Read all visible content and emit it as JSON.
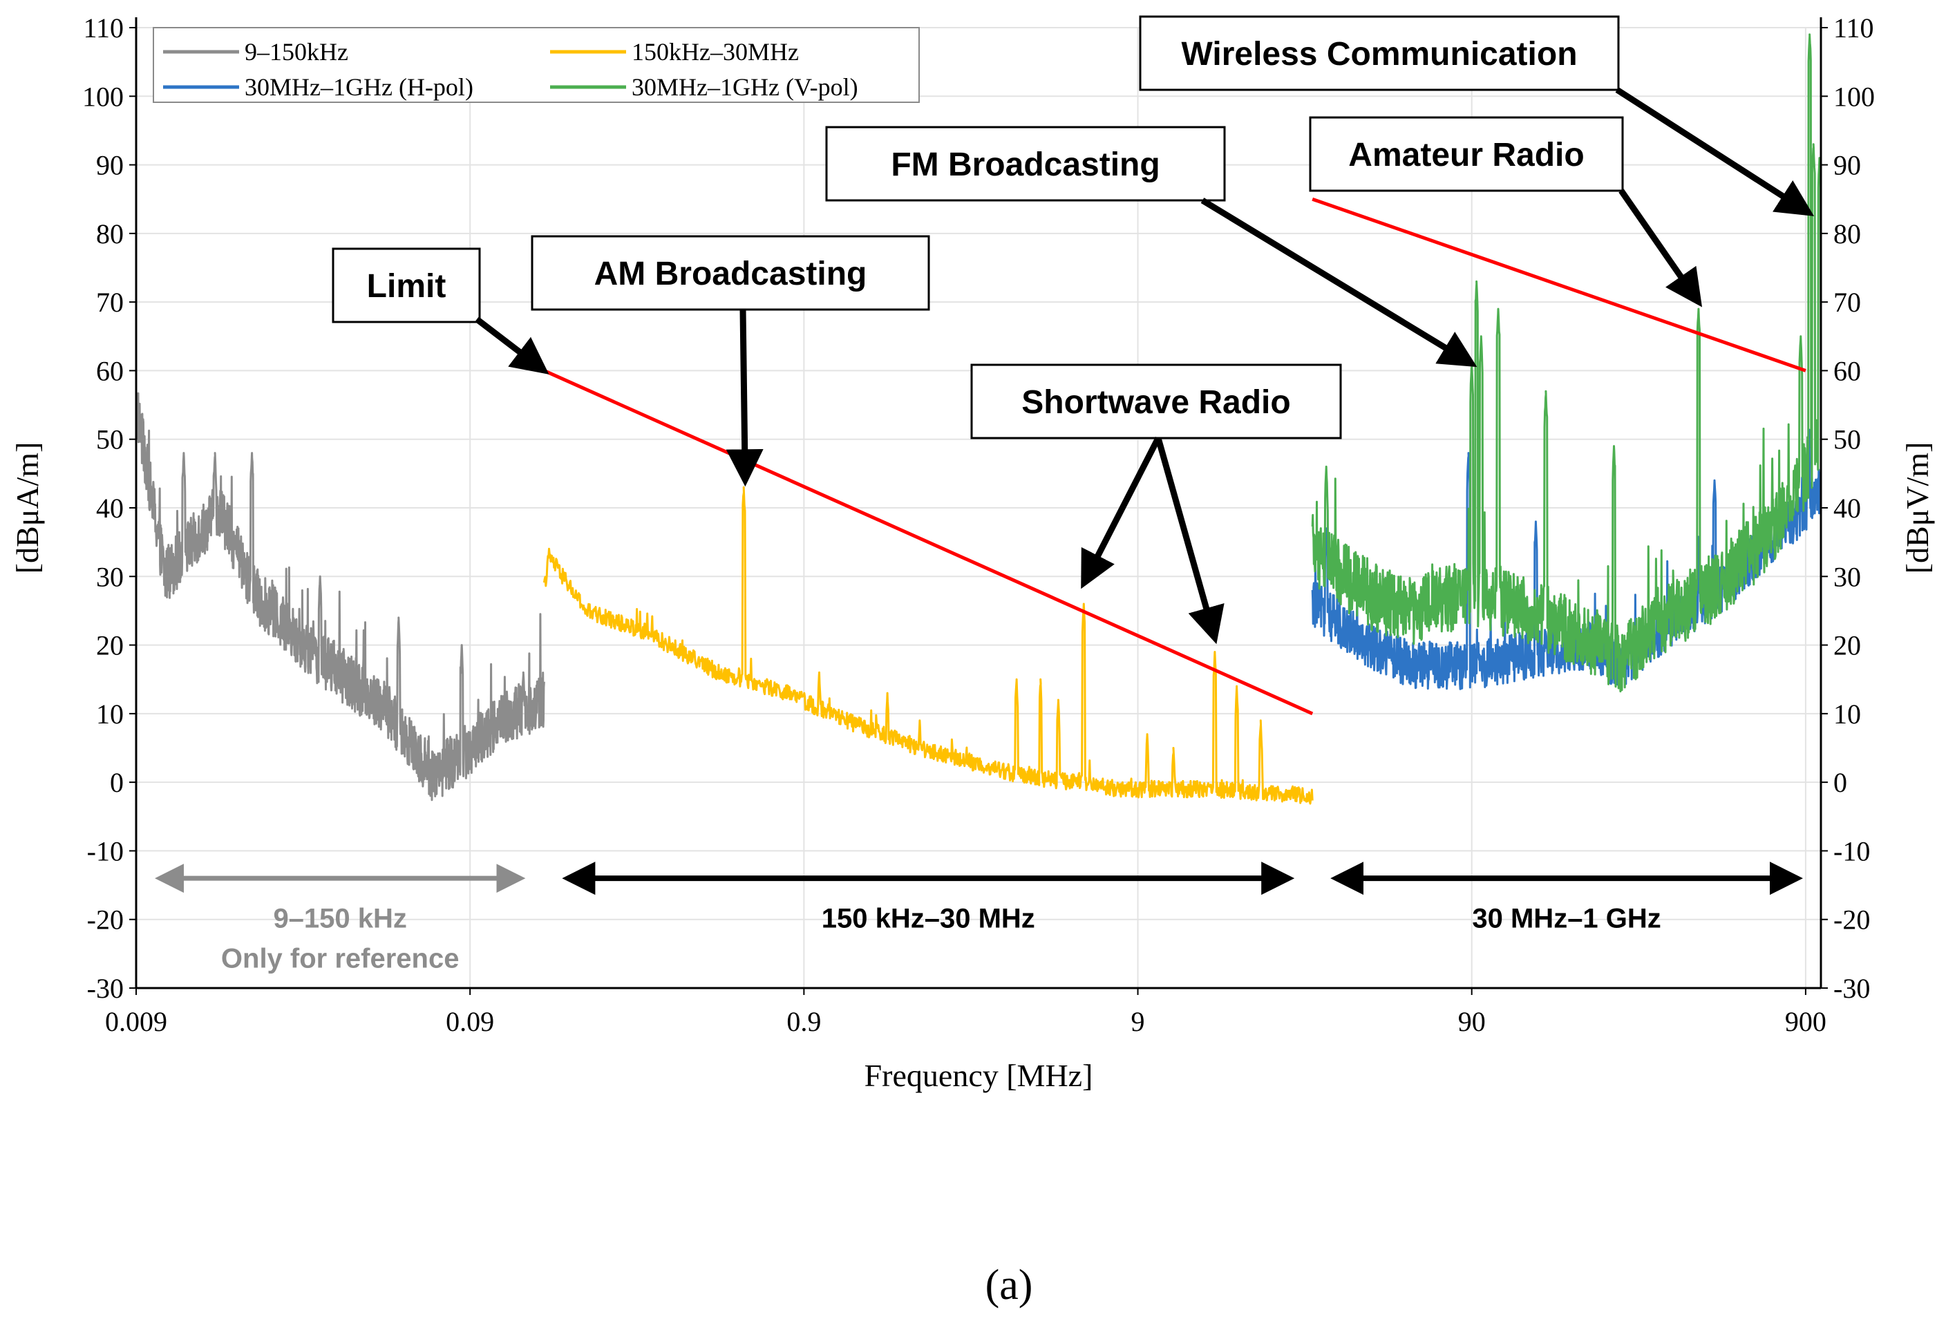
{
  "chart_data": {
    "type": "line",
    "x_scale": "log",
    "xlabel": "Frequency [MHz]",
    "ylabel_left": "[dBμA/m]",
    "ylabel_right": "[dBμV/m]",
    "xlim": [
      0.009,
      1000
    ],
    "ylim": [
      -30,
      110
    ],
    "x_tick_values": [
      0.009,
      0.09,
      0.9,
      9,
      90,
      900
    ],
    "x_tick_labels": [
      "0.009",
      "0.09",
      "0.9",
      "9",
      "90",
      "900"
    ],
    "y_ticks": [
      "-30",
      "-20",
      "-10",
      "0",
      "10",
      "20",
      "30",
      "40",
      "50",
      "60",
      "70",
      "80",
      "90",
      "100",
      "110"
    ],
    "legend": [
      {
        "name": "9–150kHz",
        "color": "#8c8c8c"
      },
      {
        "name": "150kHz–30MHz",
        "color": "#ffc000"
      },
      {
        "name": "30MHz–1GHz (H-pol)",
        "color": "#2e75c6"
      },
      {
        "name": "30MHz–1GHz (V-pol)",
        "color": "#4caf50"
      }
    ],
    "series": [
      {
        "name": "9–150kHz",
        "color": "#8c8c8c",
        "x_range": [
          0.009,
          0.15
        ],
        "baseline": [
          [
            0.009,
            55
          ],
          [
            0.011,
            30
          ],
          [
            0.016,
            40
          ],
          [
            0.02,
            28
          ],
          [
            0.03,
            19
          ],
          [
            0.05,
            11
          ],
          [
            0.07,
            1
          ],
          [
            0.09,
            5
          ],
          [
            0.11,
            9
          ],
          [
            0.15,
            12
          ]
        ],
        "peaks": [
          [
            0.009,
            57
          ],
          [
            0.0125,
            48
          ],
          [
            0.0155,
            48
          ],
          [
            0.02,
            48
          ],
          [
            0.032,
            30
          ],
          [
            0.055,
            24
          ],
          [
            0.085,
            20
          ],
          [
            0.13,
            16
          ]
        ],
        "noise": 4
      },
      {
        "name": "150kHz–30MHz",
        "color": "#ffc000",
        "x_range": [
          0.15,
          30
        ],
        "baseline": [
          [
            0.15,
            28
          ],
          [
            0.155,
            33
          ],
          [
            0.2,
            25
          ],
          [
            0.3,
            22
          ],
          [
            0.5,
            16
          ],
          [
            0.8,
            13
          ],
          [
            1.2,
            9
          ],
          [
            2,
            5
          ],
          [
            4,
            1
          ],
          [
            8,
            -1
          ],
          [
            15,
            -1
          ],
          [
            30,
            -2
          ]
        ],
        "peaks": [
          [
            0.594,
            43
          ],
          [
            1.0,
            16
          ],
          [
            1.6,
            13
          ],
          [
            3.9,
            15
          ],
          [
            4.6,
            15
          ],
          [
            5.2,
            12
          ],
          [
            6.2,
            26
          ],
          [
            9.6,
            7
          ],
          [
            11.5,
            5
          ],
          [
            15.3,
            19
          ],
          [
            17.8,
            14
          ],
          [
            21,
            9
          ],
          [
            2.0,
            9
          ]
        ],
        "noise": 1.2
      },
      {
        "name": "30MHz–1GHz (H-pol)",
        "color": "#2e75c6",
        "x_range": [
          30,
          1000
        ],
        "baseline": [
          [
            30,
            26
          ],
          [
            45,
            20
          ],
          [
            60,
            17
          ],
          [
            90,
            17
          ],
          [
            150,
            19
          ],
          [
            200,
            20
          ],
          [
            250,
            17
          ],
          [
            350,
            23
          ],
          [
            500,
            28
          ],
          [
            700,
            35
          ],
          [
            900,
            40
          ],
          [
            1000,
            43
          ]
        ],
        "peaks": [
          [
            33,
            37
          ],
          [
            88,
            48
          ],
          [
            140,
            38
          ],
          [
            480,
            44
          ],
          [
            920,
            46
          ]
        ],
        "noise": 3.5
      },
      {
        "name": "30MHz–1GHz (V-pol)",
        "color": "#4caf50",
        "x_range": [
          30,
          1000
        ],
        "baseline": [
          [
            30,
            34
          ],
          [
            45,
            27
          ],
          [
            60,
            25
          ],
          [
            90,
            28
          ],
          [
            150,
            24
          ],
          [
            200,
            21
          ],
          [
            250,
            18
          ],
          [
            350,
            24
          ],
          [
            500,
            29
          ],
          [
            700,
            36
          ],
          [
            900,
            45
          ],
          [
            1000,
            50
          ]
        ],
        "peaks": [
          [
            33,
            46
          ],
          [
            90,
            61
          ],
          [
            93,
            73
          ],
          [
            96,
            65
          ],
          [
            108,
            69
          ],
          [
            150,
            57
          ],
          [
            240,
            49
          ],
          [
            430,
            69
          ],
          [
            870,
            65
          ],
          [
            925,
            109
          ],
          [
            950,
            93
          ],
          [
            990,
            91
          ]
        ],
        "noise": 5
      }
    ],
    "limit_line": {
      "name": "Limit",
      "color": "#ff0000",
      "segments": [
        [
          [
            0.15,
            60
          ],
          [
            30,
            10
          ]
        ],
        [
          [
            30,
            85
          ],
          [
            900,
            60
          ]
        ]
      ]
    },
    "annotations": [
      {
        "text": "Limit",
        "color": "#ff0000",
        "arrow_to": [
          [
            0.15,
            60
          ]
        ]
      },
      {
        "text": "AM Broadcasting",
        "color": "#000000",
        "arrow_to": [
          [
            0.6,
            44
          ]
        ]
      },
      {
        "text": "Shortwave Radio",
        "color": "#000000",
        "arrow_to": [
          [
            6.2,
            29
          ],
          [
            15.3,
            21
          ]
        ]
      },
      {
        "text": "FM Broadcasting",
        "color": "#000000",
        "arrow_to": [
          [
            90,
            61
          ]
        ]
      },
      {
        "text": "Amateur Radio",
        "color": "#000000",
        "arrow_to": [
          [
            430,
            70
          ]
        ]
      },
      {
        "text": "Wireless Communication",
        "color": "#000000",
        "arrow_to": [
          [
            920,
            83
          ]
        ]
      }
    ],
    "ranges": [
      {
        "label_lines": [
          "9–150 kHz",
          "Only for reference"
        ],
        "from": 0.009,
        "to": 0.15,
        "color": "#8c8c8c"
      },
      {
        "label_lines": [
          "150 kHz–30 MHz"
        ],
        "from": 0.15,
        "to": 30,
        "color": "#000000"
      },
      {
        "label_lines": [
          "30 MHz–1 GHz"
        ],
        "from": 30,
        "to": 1000,
        "color": "#000000"
      }
    ],
    "caption": "(a)"
  }
}
